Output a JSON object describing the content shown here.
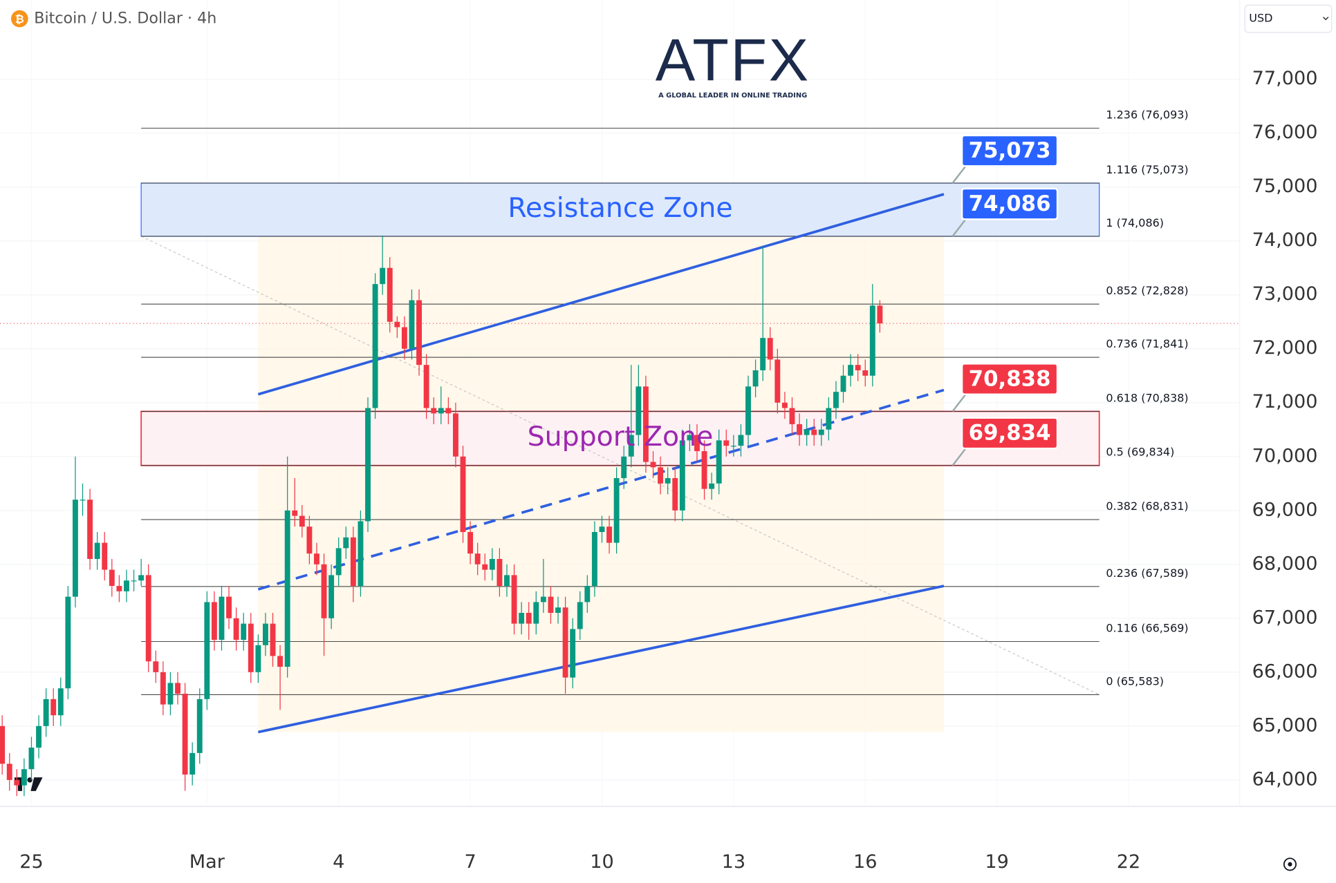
{
  "chart_data": {
    "type": "candlestick",
    "title": "Bitcoin / U.S. Dollar · 4h",
    "currency": "USD",
    "logo": {
      "name": "ATFX",
      "tagline": "A GLOBAL LEADER IN ONLINE TRADING"
    },
    "xlim": [
      -17.2,
      660.8
    ],
    "ylim": [
      63510,
      78470
    ],
    "xticks": [
      {
        "value": 0,
        "label": "25"
      },
      {
        "value": 96,
        "label": "Mar"
      },
      {
        "value": 168,
        "label": "4"
      },
      {
        "value": 240,
        "label": "7"
      },
      {
        "value": 312,
        "label": "10"
      },
      {
        "value": 384,
        "label": "13"
      },
      {
        "value": 456,
        "label": "16"
      },
      {
        "value": 528,
        "label": "19"
      },
      {
        "value": 600,
        "label": "22"
      }
    ],
    "yticks": [
      {
        "value": 64000,
        "label": "64,000"
      },
      {
        "value": 65000,
        "label": "65,000"
      },
      {
        "value": 66000,
        "label": "66,000"
      },
      {
        "value": 67000,
        "label": "67,000"
      },
      {
        "value": 68000,
        "label": "68,000"
      },
      {
        "value": 69000,
        "label": "69,000"
      },
      {
        "value": 70000,
        "label": "70,000"
      },
      {
        "value": 71000,
        "label": "71,000"
      },
      {
        "value": 72000,
        "label": "72,000"
      },
      {
        "value": 73000,
        "label": "73,000"
      },
      {
        "value": 74000,
        "label": "74,000"
      },
      {
        "value": 75000,
        "label": "75,000"
      },
      {
        "value": 76000,
        "label": "76,000"
      },
      {
        "value": 77000,
        "label": "77,000"
      }
    ],
    "grid": true,
    "up_color": "#089981",
    "down_color": "#f23645",
    "x": [
      -16,
      -12,
      -8,
      -4,
      0,
      4,
      8,
      12,
      16,
      20,
      24,
      28,
      32,
      36,
      40,
      44,
      48,
      52,
      56,
      60,
      64,
      68,
      72,
      76,
      80,
      84,
      88,
      92,
      96,
      100,
      104,
      108,
      112,
      116,
      120,
      124,
      128,
      132,
      136,
      140,
      144,
      148,
      152,
      156,
      160,
      164,
      168,
      172,
      176,
      180,
      184,
      188,
      192,
      196,
      200,
      204,
      208,
      212,
      216,
      220,
      224,
      228,
      232,
      236,
      240,
      244,
      248,
      252,
      256,
      260,
      264,
      268,
      272,
      276,
      280,
      284,
      288,
      292,
      296,
      300,
      304,
      308,
      312,
      316,
      320,
      324,
      328,
      332,
      336,
      340,
      344,
      348,
      352,
      356,
      360,
      364,
      368,
      372,
      376,
      380,
      384,
      388,
      392,
      396,
      400,
      404,
      408,
      412,
      416,
      420,
      424,
      428,
      432,
      436,
      440,
      444,
      448,
      452,
      456,
      460,
      464
    ],
    "ohlc": [
      [
        65000,
        65200,
        64100,
        64300
      ],
      [
        64300,
        64500,
        63800,
        64000
      ],
      [
        64000,
        64200,
        63700,
        63900
      ],
      [
        63900,
        64400,
        63700,
        64200
      ],
      [
        64200,
        64800,
        64000,
        64600
      ],
      [
        64600,
        65200,
        64400,
        65000
      ],
      [
        65000,
        65700,
        64800,
        65500
      ],
      [
        65500,
        65700,
        65000,
        65200
      ],
      [
        65200,
        65900,
        65000,
        65700
      ],
      [
        65700,
        67600,
        65500,
        67400
      ],
      [
        67400,
        70000,
        67200,
        69200
      ],
      [
        69200,
        69500,
        68900,
        69200
      ],
      [
        69200,
        69400,
        67900,
        68100
      ],
      [
        68100,
        68600,
        67900,
        68400
      ],
      [
        68400,
        68600,
        67700,
        67900
      ],
      [
        67900,
        68100,
        67400,
        67600
      ],
      [
        67600,
        67800,
        67300,
        67500
      ],
      [
        67500,
        67900,
        67300,
        67700
      ],
      [
        67700,
        67900,
        67500,
        67700
      ],
      [
        67700,
        68100,
        67600,
        67800
      ],
      [
        67800,
        68000,
        66000,
        66200
      ],
      [
        66200,
        66400,
        65800,
        66000
      ],
      [
        66000,
        66200,
        65200,
        65400
      ],
      [
        65400,
        66000,
        65200,
        65800
      ],
      [
        65800,
        66000,
        65400,
        65600
      ],
      [
        65600,
        65800,
        63800,
        64100
      ],
      [
        64100,
        64700,
        63900,
        64500
      ],
      [
        64500,
        65700,
        64300,
        65500
      ],
      [
        65500,
        67500,
        65300,
        67300
      ],
      [
        67300,
        67500,
        66400,
        66600
      ],
      [
        66600,
        67600,
        66400,
        67400
      ],
      [
        67400,
        67600,
        66800,
        67000
      ],
      [
        67000,
        67200,
        66400,
        66600
      ],
      [
        66600,
        67100,
        66400,
        66900
      ],
      [
        66900,
        67100,
        65800,
        66000
      ],
      [
        66000,
        66700,
        65800,
        66500
      ],
      [
        66500,
        67100,
        66300,
        66900
      ],
      [
        66900,
        67100,
        66100,
        66300
      ],
      [
        66300,
        66500,
        65300,
        66100
      ],
      [
        66100,
        70000,
        65900,
        69000
      ],
      [
        69000,
        69600,
        68700,
        68900
      ],
      [
        68900,
        69100,
        68500,
        68700
      ],
      [
        68700,
        68900,
        68000,
        68200
      ],
      [
        68200,
        68400,
        67800,
        68000
      ],
      [
        68000,
        68200,
        66300,
        67000
      ],
      [
        67000,
        68000,
        66800,
        67800
      ],
      [
        67800,
        68500,
        67600,
        68300
      ],
      [
        68300,
        68700,
        68100,
        68500
      ],
      [
        68500,
        68700,
        67300,
        67600
      ],
      [
        67600,
        69000,
        67400,
        68800
      ],
      [
        68800,
        71100,
        68600,
        70900
      ],
      [
        70900,
        73400,
        70700,
        73200
      ],
      [
        73200,
        74100,
        73000,
        73500
      ],
      [
        73500,
        73700,
        72300,
        72500
      ],
      [
        72500,
        72600,
        72200,
        72400
      ],
      [
        72400,
        72600,
        71800,
        72000
      ],
      [
        72000,
        73100,
        71800,
        72900
      ],
      [
        72900,
        73100,
        71500,
        71700
      ],
      [
        71700,
        71900,
        70700,
        70900
      ],
      [
        70900,
        71100,
        70600,
        70800
      ],
      [
        70800,
        71300,
        70600,
        70900
      ],
      [
        70900,
        71100,
        70600,
        70800
      ],
      [
        70800,
        71000,
        69800,
        70000
      ],
      [
        70000,
        70200,
        68400,
        68600
      ],
      [
        68600,
        68800,
        68000,
        68200
      ],
      [
        68200,
        68400,
        67800,
        68000
      ],
      [
        68000,
        68200,
        67700,
        67900
      ],
      [
        67900,
        68300,
        67700,
        68100
      ],
      [
        68100,
        68300,
        67400,
        67600
      ],
      [
        67600,
        68000,
        67400,
        67800
      ],
      [
        67800,
        68000,
        66700,
        66900
      ],
      [
        66900,
        67300,
        66700,
        67100
      ],
      [
        67100,
        67300,
        66600,
        66900
      ],
      [
        66900,
        67500,
        66700,
        67300
      ],
      [
        67300,
        68100,
        67100,
        67400
      ],
      [
        67400,
        67600,
        66900,
        67100
      ],
      [
        67100,
        67400,
        66900,
        67200
      ],
      [
        67200,
        67400,
        65600,
        65900
      ],
      [
        65900,
        67000,
        65700,
        66800
      ],
      [
        66800,
        67500,
        66600,
        67300
      ],
      [
        67300,
        67800,
        67100,
        67600
      ],
      [
        67600,
        68800,
        67400,
        68600
      ],
      [
        68600,
        68900,
        68400,
        68700
      ],
      [
        68700,
        68900,
        68200,
        68400
      ],
      [
        68400,
        69800,
        68200,
        69600
      ],
      [
        69600,
        70200,
        69400,
        70000
      ],
      [
        70000,
        71700,
        69800,
        70400
      ],
      [
        70400,
        71700,
        70200,
        71300
      ],
      [
        71300,
        71500,
        69700,
        69900
      ],
      [
        69900,
        70100,
        69600,
        69800
      ],
      [
        69800,
        70000,
        69300,
        69500
      ],
      [
        69500,
        69800,
        69300,
        69600
      ],
      [
        69600,
        69800,
        68800,
        69000
      ],
      [
        69000,
        70500,
        68800,
        70300
      ],
      [
        70300,
        70600,
        70100,
        70400
      ],
      [
        70400,
        70600,
        69900,
        70100
      ],
      [
        70100,
        70300,
        69200,
        69400
      ],
      [
        69400,
        69700,
        69200,
        69500
      ],
      [
        69500,
        70500,
        69300,
        70300
      ],
      [
        70300,
        70500,
        70000,
        70200
      ],
      [
        70200,
        70400,
        70000,
        70200
      ],
      [
        70200,
        70600,
        70000,
        70400
      ],
      [
        70400,
        71500,
        70200,
        71300
      ],
      [
        71300,
        71800,
        71100,
        71600
      ],
      [
        71600,
        73900,
        71400,
        72200
      ],
      [
        72200,
        72400,
        71600,
        71800
      ],
      [
        71800,
        72000,
        70800,
        71000
      ],
      [
        71000,
        71200,
        70700,
        70900
      ],
      [
        70900,
        71100,
        70400,
        70600
      ],
      [
        70600,
        70800,
        70200,
        70400
      ],
      [
        70400,
        70700,
        70200,
        70500
      ],
      [
        70500,
        70700,
        70200,
        70400
      ],
      [
        70400,
        70700,
        70200,
        70500
      ],
      [
        70500,
        71100,
        70300,
        70900
      ],
      [
        70900,
        71400,
        70700,
        71200
      ],
      [
        71200,
        71700,
        71000,
        71500
      ],
      [
        71500,
        71900,
        71300,
        71700
      ],
      [
        71700,
        71900,
        71400,
        71600
      ],
      [
        71600,
        71800,
        71300,
        71500
      ],
      [
        71500,
        73200,
        71300,
        72800
      ],
      [
        72800,
        72900,
        72300,
        72470
      ]
    ],
    "fib_range": [
      60,
      584
    ],
    "fib_levels": [
      {
        "value": 76093,
        "label": "1.236 (76,093)"
      },
      {
        "value": 75073,
        "label": "1.116 (75,073)"
      },
      {
        "value": 74086,
        "label": "1 (74,086)"
      },
      {
        "value": 72828,
        "label": "0.852 (72,828)"
      },
      {
        "value": 71841,
        "label": "0.736 (71,841)"
      },
      {
        "value": 70838,
        "label": "0.618 (70,838)"
      },
      {
        "value": 69834,
        "label": "0.5 (69,834)"
      },
      {
        "value": 68831,
        "label": "0.382 (68,831)"
      },
      {
        "value": 67589,
        "label": "0.236 (67,589)"
      },
      {
        "value": 66569,
        "label": "0.116 (66,569)"
      },
      {
        "value": 65583,
        "label": "0 (65,583)"
      }
    ],
    "zones": [
      {
        "name": "Resistance Zone",
        "high": 75073,
        "low": 74086,
        "labels": [
          "75,073",
          "74,086"
        ],
        "color": "#2962ff"
      },
      {
        "name": "Support Zone",
        "high": 70838,
        "low": 69834,
        "labels": [
          "70,838",
          "69,834"
        ],
        "color": "#f23645"
      }
    ],
    "channel": {
      "color": "#2f5fe0",
      "x": [
        124,
        499
      ],
      "upper": [
        71155,
        74867
      ],
      "middle": [
        67537,
        71234
      ],
      "lower": [
        64888,
        67600
      ]
    }
  }
}
